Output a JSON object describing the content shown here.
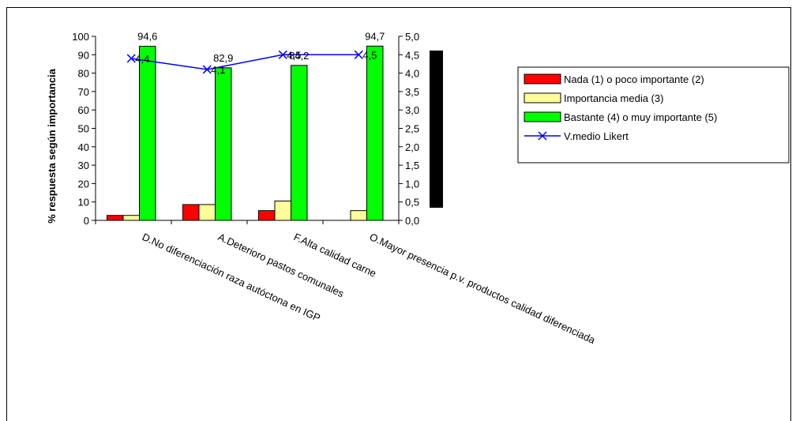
{
  "chart_data": {
    "type": "bar",
    "categories": [
      "D.No diferenciación raza autóctona en IGP",
      "A.Deterioro pastos comunales",
      "F.Alta calidad carne",
      "O.Mayor presencia p.v. productos calidad diferenciada"
    ],
    "series": [
      {
        "name": "Nada (1) o poco importante (2)",
        "values": [
          2.7,
          8.6,
          5.3,
          0
        ],
        "color": "#ff0000"
      },
      {
        "name": "Importancia media (3)",
        "values": [
          2.7,
          8.6,
          10.5,
          5.3
        ],
        "color": "#ffff99"
      },
      {
        "name": "Bastante (4) o muy importante (5)",
        "values": [
          94.6,
          82.9,
          84.2,
          94.7
        ],
        "color": "#00ff00"
      }
    ],
    "line_series": {
      "name": "V.medio Likert",
      "values": [
        4.4,
        4.1,
        4.5,
        4.5
      ],
      "labels": [
        "4,4",
        "4,1",
        "4,5",
        "4,5"
      ],
      "color": "#0000ff"
    },
    "bar_labels": [
      "94,6",
      "82,9",
      "84,2",
      "94,7"
    ],
    "ylabel": "% respuesta según importancia",
    "ylim": [
      0,
      100
    ],
    "y_ticks": [
      "0",
      "10",
      "20",
      "30",
      "40",
      "50",
      "60",
      "70",
      "80",
      "90",
      "100"
    ],
    "y2lim": [
      0,
      5
    ],
    "y2_ticks": [
      "0,0",
      "0,5",
      "1,0",
      "1,5",
      "2,0",
      "2,5",
      "3,0",
      "3,5",
      "4,0",
      "4,5",
      "5,0"
    ],
    "grid": false,
    "legend_position": "right"
  }
}
